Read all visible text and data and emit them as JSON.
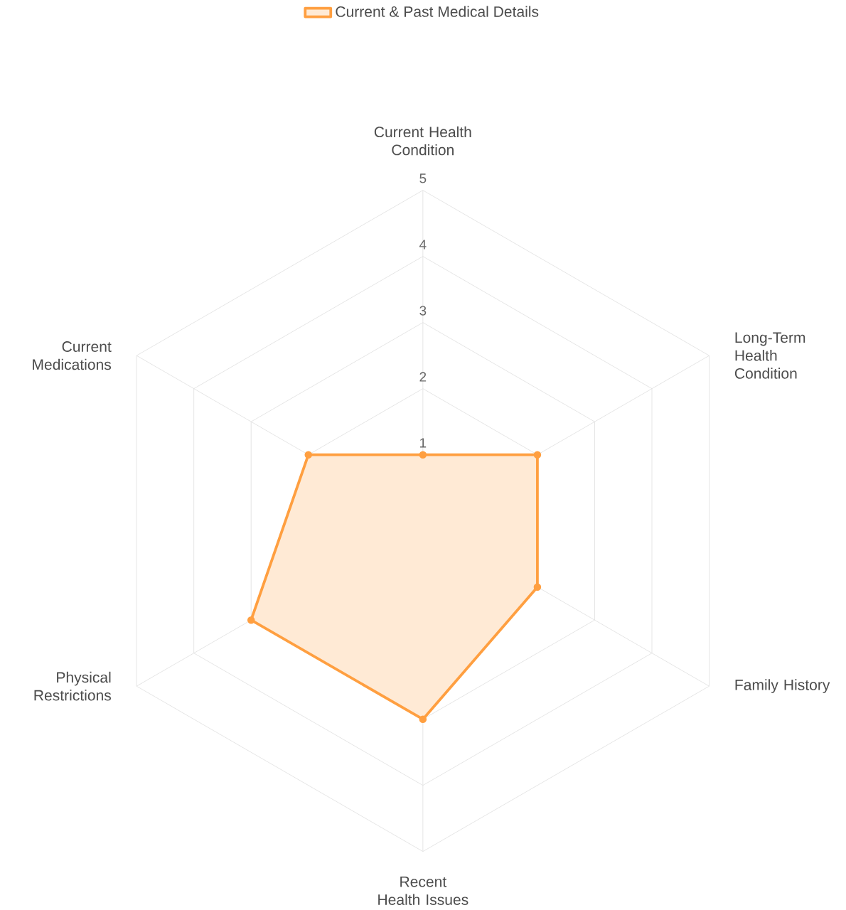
{
  "chart_data": {
    "type": "radar",
    "categories": [
      "Current Health Condition",
      "Long-Term Health Condition",
      "Family History",
      "Recent Health Issues",
      "Physical Restrictions",
      "Current Medications"
    ],
    "series": [
      {
        "name": "Current & Past Medical Details",
        "color": "#ff9f40",
        "values": [
          1,
          2,
          2,
          3,
          3,
          2
        ]
      }
    ],
    "ylim": [
      0,
      5
    ],
    "yticks": [
      1,
      2,
      3,
      4,
      5
    ],
    "grid": true,
    "legend": "top",
    "marker": "circle"
  }
}
